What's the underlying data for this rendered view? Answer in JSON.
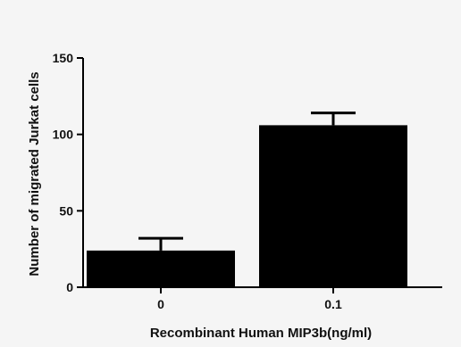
{
  "chart_data": {
    "type": "bar",
    "title": "",
    "categories": [
      "0",
      "0.1"
    ],
    "values": [
      24,
      106
    ],
    "errors": [
      8,
      8
    ],
    "xlabel": "Recombinant Human MIP3b(ng/ml)",
    "ylabel": "Number of migrated Jurkat cells",
    "ylim": [
      0,
      150
    ],
    "yticks": [
      0,
      50,
      100,
      150
    ],
    "grid": false,
    "legend": "none",
    "colors": {
      "bar": "#000000",
      "axis": "#000000",
      "background": "#f5f5f5"
    }
  }
}
